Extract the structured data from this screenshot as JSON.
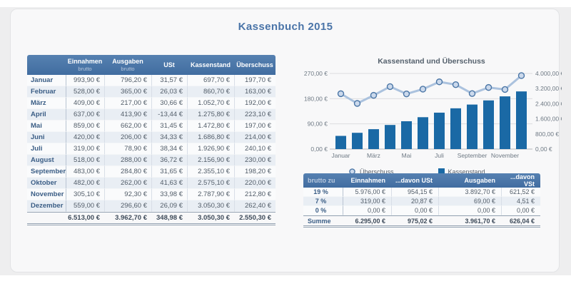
{
  "page_title": "Kassenbuch 2015",
  "colors": {
    "accent_blue": "#4a74a8",
    "header_blue": "#4b77a9",
    "bar_blue": "#1a69a5",
    "line_blue": "#abc2de",
    "marker_fill": "#cbd9ec",
    "marker_stroke": "#4b76a6",
    "grid_gray": "#dcdddf",
    "axis_text": "#6e7984"
  },
  "main_table": {
    "columns": [
      {
        "label": "",
        "sub": ""
      },
      {
        "label": "Einnahmen",
        "sub": "brutto"
      },
      {
        "label": "Ausgaben",
        "sub": "brutto"
      },
      {
        "label": "USt",
        "sub": ""
      },
      {
        "label": "Kassenstand",
        "sub": ""
      },
      {
        "label": "Überschuss",
        "sub": ""
      }
    ],
    "rows": [
      {
        "month": "Januar",
        "values": [
          "993,90 €",
          "796,20 €",
          "31,57 €",
          "697,70 €",
          "197,70 €"
        ]
      },
      {
        "month": "Februar",
        "values": [
          "528,00 €",
          "365,00 €",
          "26,03 €",
          "860,70 €",
          "163,00 €"
        ]
      },
      {
        "month": "März",
        "values": [
          "409,00 €",
          "217,00 €",
          "30,66 €",
          "1.052,70 €",
          "192,00 €"
        ]
      },
      {
        "month": "April",
        "values": [
          "637,00 €",
          "413,90 €",
          "-13,44 €",
          "1.275,80 €",
          "223,10 €"
        ]
      },
      {
        "month": "Mai",
        "values": [
          "859,00 €",
          "662,00 €",
          "31,45 €",
          "1.472,80 €",
          "197,00 €"
        ]
      },
      {
        "month": "Juni",
        "values": [
          "420,00 €",
          "206,00 €",
          "34,33 €",
          "1.686,80 €",
          "214,00 €"
        ]
      },
      {
        "month": "Juli",
        "values": [
          "319,00 €",
          "78,90 €",
          "38,34 €",
          "1.926,90 €",
          "240,10 €"
        ]
      },
      {
        "month": "August",
        "values": [
          "518,00 €",
          "288,00 €",
          "36,72 €",
          "2.156,90 €",
          "230,00 €"
        ]
      },
      {
        "month": "September",
        "values": [
          "483,00 €",
          "284,80 €",
          "31,65 €",
          "2.355,10 €",
          "198,20 €"
        ]
      },
      {
        "month": "Oktober",
        "values": [
          "482,00 €",
          "262,00 €",
          "41,63 €",
          "2.575,10 €",
          "220,00 €"
        ]
      },
      {
        "month": "November",
        "values": [
          "305,10 €",
          "92,30 €",
          "33,98 €",
          "2.787,90 €",
          "212,80 €"
        ]
      },
      {
        "month": "Dezember",
        "values": [
          "559,00 €",
          "296,60 €",
          "26,09 €",
          "3.050,30 €",
          "262,40 €"
        ]
      }
    ],
    "totals": [
      "6.513,00 €",
      "3.962,70 €",
      "348,98 €",
      "3.050,30 €",
      "2.550,30 €"
    ]
  },
  "chart_data": {
    "type": "combo",
    "title": "Kassenstand und Überschuss",
    "categories": [
      "Januar",
      "Februar",
      "März",
      "April",
      "Mai",
      "Juni",
      "Juli",
      "August",
      "September",
      "Oktober",
      "November",
      "Dezember"
    ],
    "x_tick_labels": [
      "Januar",
      "März",
      "Mai",
      "Juli",
      "September",
      "November"
    ],
    "series": [
      {
        "name": "Überschuss",
        "type": "line",
        "axis": "left",
        "values": [
          197.7,
          163.0,
          192.0,
          223.1,
          197.0,
          214.0,
          240.1,
          230.0,
          198.2,
          220.0,
          212.8,
          262.4
        ]
      },
      {
        "name": "Kassenstand",
        "type": "bar",
        "axis": "right",
        "values": [
          697.7,
          860.7,
          1052.7,
          1275.8,
          1472.8,
          1686.8,
          1926.9,
          2156.9,
          2355.1,
          2575.1,
          2787.9,
          3050.3
        ]
      }
    ],
    "left_axis": {
      "min": 0,
      "max": 270,
      "tick_values": [
        0,
        90,
        180,
        270
      ],
      "tick_labels": [
        "0,00 €",
        "90,00 €",
        "180,00 €",
        "270,00 €"
      ]
    },
    "right_axis": {
      "min": 0,
      "max": 4000,
      "tick_values": [
        0,
        800,
        1600,
        2400,
        3200,
        4000
      ],
      "tick_labels": [
        "0,00 €",
        "800,00 €",
        "1.600,00 €",
        "2.400,00 €",
        "3.200,00 €",
        "4.000,00 €"
      ]
    },
    "grid": true,
    "legend_position": "bottom"
  },
  "summary_table": {
    "columns": [
      "brutto zu",
      "Einnahmen",
      "...davon USt",
      "Ausgaben",
      "...davon VSt"
    ],
    "rows": [
      {
        "label": "19 %",
        "values": [
          "5.976,00 €",
          "954,15 €",
          "3.892,70 €",
          "621,52 €"
        ]
      },
      {
        "label": "7 %",
        "values": [
          "319,00 €",
          "20,87 €",
          "69,00 €",
          "4,51 €"
        ]
      },
      {
        "label": "0 %",
        "values": [
          "0,00 €",
          "0,00 €",
          "0,00 €",
          "0,00 €"
        ]
      }
    ],
    "total": {
      "label": "Summe",
      "values": [
        "6.295,00 €",
        "975,02 €",
        "3.961,70 €",
        "626,04 €"
      ]
    }
  }
}
